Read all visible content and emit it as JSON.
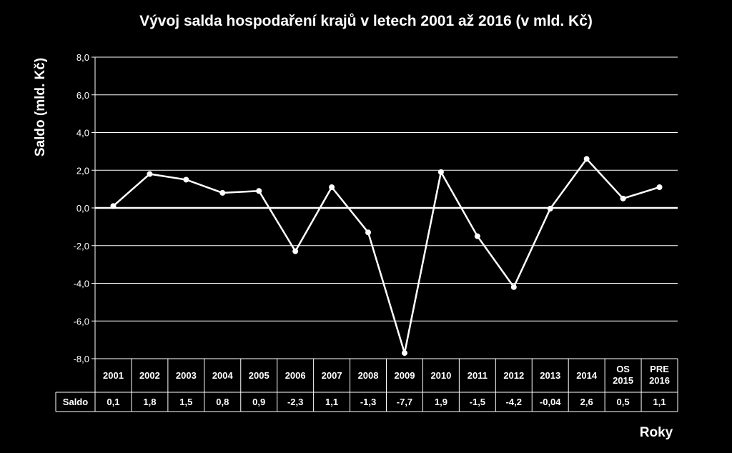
{
  "colors": {
    "background": "#000000",
    "line": "#ffffff",
    "grid": "#ffffff",
    "text": "#ffffff"
  },
  "chart_data": {
    "type": "line",
    "title": "Vývoj salda hospodaření krajů v letech 2001 až 2016 (v mld. Kč)",
    "xlabel": "Roky",
    "ylabel": "Saldo (mld. Kč)",
    "ylim": [
      -8,
      8
    ],
    "y_ticks": [
      8,
      6,
      4,
      2,
      0,
      -2,
      -4,
      -6,
      -8
    ],
    "y_tick_labels": [
      "8,0",
      "6,0",
      "4,0",
      "2,0",
      "0,0",
      "-2,0",
      "-4,0",
      "-6,0",
      "-8,0"
    ],
    "grid": true,
    "legend": "none",
    "categories": [
      [
        "2001"
      ],
      [
        "2002"
      ],
      [
        "2003"
      ],
      [
        "2004"
      ],
      [
        "2005"
      ],
      [
        "2006"
      ],
      [
        "2007"
      ],
      [
        "2008"
      ],
      [
        "2009"
      ],
      [
        "2010"
      ],
      [
        "2011"
      ],
      [
        "2012"
      ],
      [
        "2013"
      ],
      [
        "2014"
      ],
      [
        "OS",
        "2015"
      ],
      [
        "PRE",
        "2016"
      ]
    ],
    "series": [
      {
        "name": "Saldo",
        "values": [
          0.1,
          1.8,
          1.5,
          0.8,
          0.9,
          -2.3,
          1.1,
          -1.3,
          -7.7,
          1.9,
          -1.5,
          -4.2,
          -0.04,
          2.6,
          0.5,
          1.1
        ],
        "labels": [
          "0,1",
          "1,8",
          "1,5",
          "0,8",
          "0,9",
          "-2,3",
          "1,1",
          "-1,3",
          "-7,7",
          "1,9",
          "-1,5",
          "-4,2",
          "-0,04",
          "2,6",
          "0,5",
          "1,1"
        ]
      }
    ]
  }
}
